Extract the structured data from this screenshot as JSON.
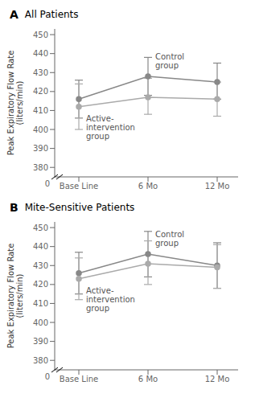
{
  "chart_data": [
    {
      "type": "line",
      "panel_label": "A",
      "title": "All Patients",
      "categories": [
        "Base Line",
        "6 Mo",
        "12 Mo"
      ],
      "y_label": "Peak Expiratory Flow Rate\n(liters/min)",
      "ylim": [
        375,
        453
      ],
      "yticks": [
        380,
        390,
        400,
        410,
        420,
        430,
        440,
        450
      ],
      "grid": false,
      "annotations": [
        "0"
      ],
      "series": [
        {
          "annotation": "Control\ngroup",
          "color": "#888888",
          "marker": "circle",
          "line_style": "solid",
          "values": [
            416,
            428,
            425
          ],
          "ci_lower": [
            406,
            418,
            416
          ],
          "ci_upper": [
            426,
            438,
            435
          ]
        },
        {
          "annotation": "Active-\nintervention\ngroup",
          "color": "#aaaaaa",
          "marker": "circle",
          "line_style": "solid",
          "values": [
            412,
            417,
            416
          ],
          "ci_lower": [
            400,
            408,
            407
          ],
          "ci_upper": [
            424,
            427,
            425
          ]
        }
      ]
    },
    {
      "type": "line",
      "panel_label": "B",
      "title": "Mite-Sensitive Patients",
      "categories": [
        "Base Line",
        "6 Mo",
        "12 Mo"
      ],
      "y_label": "Peak Expiratory Flow Rate\n(liters/min)",
      "ylim": [
        375,
        453
      ],
      "yticks": [
        380,
        390,
        400,
        410,
        420,
        430,
        440,
        450
      ],
      "grid": false,
      "annotations": [
        "0"
      ],
      "series": [
        {
          "annotation": "Control\ngroup",
          "color": "#888888",
          "marker": "circle",
          "line_style": "solid",
          "values": [
            426,
            436,
            430
          ],
          "ci_lower": [
            415,
            424,
            418
          ],
          "ci_upper": [
            437,
            448,
            442
          ]
        },
        {
          "annotation": "Active-\nintervention\ngroup",
          "color": "#aaaaaa",
          "marker": "circle",
          "line_style": "solid",
          "values": [
            423,
            431,
            429
          ],
          "ci_lower": [
            412,
            420,
            418
          ],
          "ci_upper": [
            434,
            443,
            441
          ]
        }
      ]
    }
  ]
}
